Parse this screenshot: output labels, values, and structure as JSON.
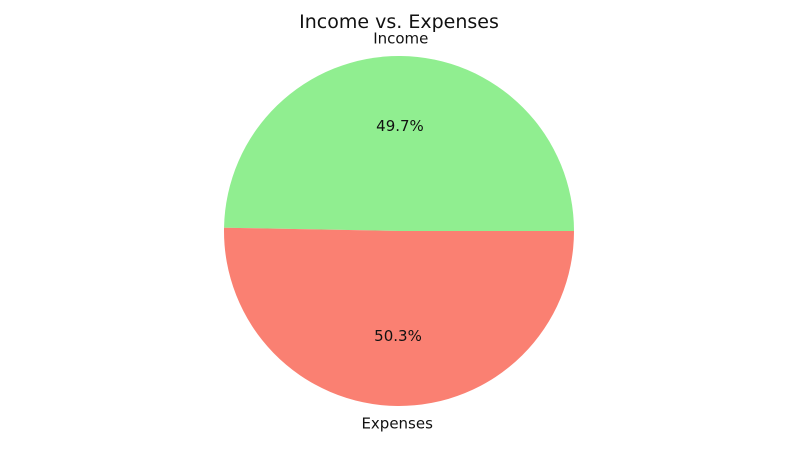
{
  "chart_data": {
    "type": "pie",
    "title": "Income vs. Expenses",
    "categories": [
      "Income",
      "Expenses"
    ],
    "values": [
      49.7,
      50.3
    ],
    "percent_labels": [
      "49.7%",
      "50.3%"
    ],
    "colors": [
      "#90ee90",
      "#fa8072"
    ],
    "start_angle_deg": 0,
    "direction": "counterclockwise"
  }
}
